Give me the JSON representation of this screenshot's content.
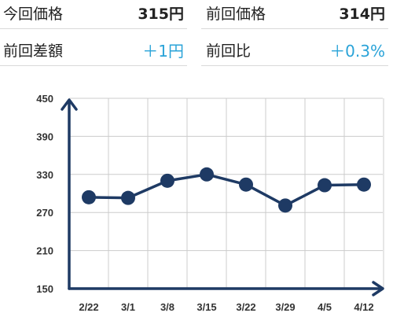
{
  "prices": {
    "current": {
      "label": "今回価格",
      "value": "315円"
    },
    "previous": {
      "label": "前回価格",
      "value": "314円"
    },
    "diff": {
      "label": "前回差額",
      "value": "＋1円"
    },
    "ratio": {
      "label": "前回比",
      "value": "＋0.3%"
    }
  },
  "colors": {
    "series": "#1e3a64",
    "change_positive": "#2aa3d8",
    "grid": "#cccccc"
  },
  "chart_data": {
    "type": "line",
    "title": "",
    "xlabel": "",
    "ylabel": "",
    "categories": [
      "2/22",
      "3/1",
      "3/8",
      "3/15",
      "3/22",
      "3/29",
      "4/5",
      "4/12"
    ],
    "series": [
      {
        "values": [
          294,
          293,
          320,
          330,
          314,
          281,
          313,
          314
        ]
      }
    ],
    "ylim": [
      150,
      450
    ],
    "yticks": [
      150,
      210,
      270,
      330,
      390,
      450
    ],
    "grid": true,
    "legend": "none"
  }
}
